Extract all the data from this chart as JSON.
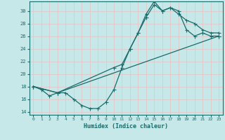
{
  "bg_color": "#c6e8e8",
  "grid_color": "#e0c8c8",
  "line_color": "#1a6b6b",
  "xlabel": "Humidex (Indice chaleur)",
  "xlim": [
    -0.5,
    23.5
  ],
  "ylim": [
    13.5,
    31.5
  ],
  "xticks": [
    0,
    1,
    2,
    3,
    4,
    5,
    6,
    7,
    8,
    9,
    10,
    11,
    12,
    13,
    14,
    15,
    16,
    17,
    18,
    19,
    20,
    21,
    22,
    23
  ],
  "yticks": [
    14,
    16,
    18,
    20,
    22,
    24,
    26,
    28,
    30
  ],
  "line1_x": [
    0,
    1,
    2,
    3,
    4,
    5,
    6,
    7,
    8,
    9,
    10,
    11,
    12,
    13,
    14,
    15,
    16,
    17,
    18,
    19,
    20,
    21,
    22,
    23
  ],
  "line1_y": [
    18,
    17.5,
    16.5,
    17,
    17,
    16,
    15,
    14.5,
    14.5,
    15.5,
    17.5,
    21,
    24,
    26.5,
    29,
    31,
    30,
    30.5,
    30,
    27,
    26,
    26.5,
    26,
    26
  ],
  "line2_x": [
    0,
    3,
    10,
    11,
    12,
    13,
    14,
    15,
    16,
    17,
    18,
    19,
    20,
    21,
    22,
    23
  ],
  "line2_y": [
    18,
    17,
    21,
    21.5,
    24,
    26.5,
    29.5,
    31.5,
    30,
    30.5,
    29.5,
    28.5,
    28,
    27,
    26.5,
    26.5
  ],
  "line3_x": [
    0,
    3,
    23
  ],
  "line3_y": [
    18,
    17,
    26
  ]
}
